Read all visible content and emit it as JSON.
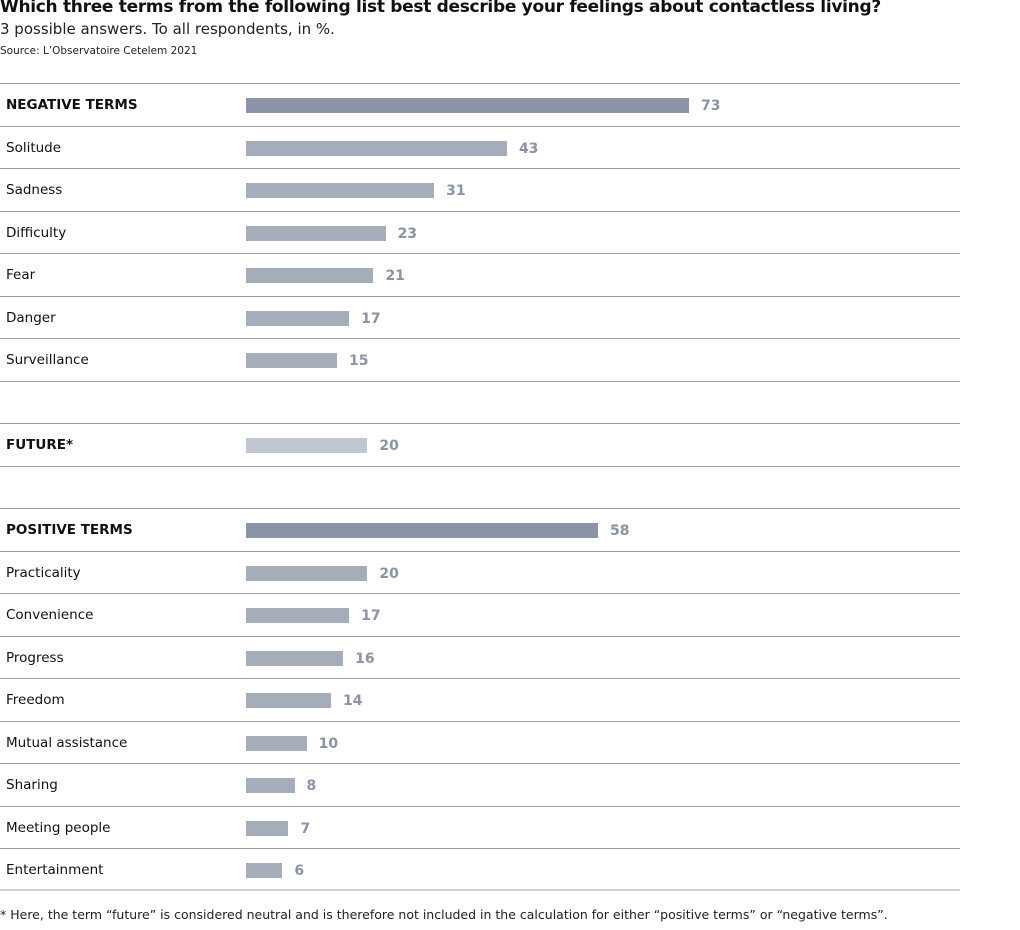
{
  "title": "Which three terms from the following list best describe your feelings about contactless living?",
  "subtitle": "3 possible answers. To all respondents, in %.",
  "source": "Source: L’Observatoire Cetelem 2021",
  "footnote": "* Here, the term “future” is considered neutral and is therefore not included in the calculation for either “positive terms” or “negative terms”.",
  "colors": {
    "header": "#8a94a6",
    "item": "#a5adba",
    "neutral": "#c0c6d2",
    "value": "#8a94a6"
  },
  "chart_data": {
    "type": "bar",
    "orientation": "horizontal",
    "title": "Which three terms from the following list best describe your feelings about contactless living?",
    "unit": "%",
    "xlim": [
      0,
      73
    ],
    "rows": [
      {
        "label": "NEGATIVE TERMS",
        "value": 73,
        "kind": "header"
      },
      {
        "label": "Solitude",
        "value": 43,
        "kind": "item"
      },
      {
        "label": "Sadness",
        "value": 31,
        "kind": "item"
      },
      {
        "label": "Difficulty",
        "value": 23,
        "kind": "item"
      },
      {
        "label": "Fear",
        "value": 21,
        "kind": "item"
      },
      {
        "label": "Danger",
        "value": 17,
        "kind": "item"
      },
      {
        "label": "Surveillance",
        "value": 15,
        "kind": "item"
      },
      {
        "label": "",
        "value": null,
        "kind": "blank"
      },
      {
        "label": "FUTURE*",
        "value": 20,
        "kind": "neutral"
      },
      {
        "label": "",
        "value": null,
        "kind": "blank"
      },
      {
        "label": "POSITIVE TERMS",
        "value": 58,
        "kind": "header"
      },
      {
        "label": "Practicality",
        "value": 20,
        "kind": "item"
      },
      {
        "label": "Convenience",
        "value": 17,
        "kind": "item"
      },
      {
        "label": "Progress",
        "value": 16,
        "kind": "item"
      },
      {
        "label": "Freedom",
        "value": 14,
        "kind": "item"
      },
      {
        "label": "Mutual assistance",
        "value": 10,
        "kind": "item"
      },
      {
        "label": "Sharing",
        "value": 8,
        "kind": "item"
      },
      {
        "label": "Meeting people",
        "value": 7,
        "kind": "item"
      },
      {
        "label": "Entertainment",
        "value": 6,
        "kind": "item"
      }
    ]
  }
}
